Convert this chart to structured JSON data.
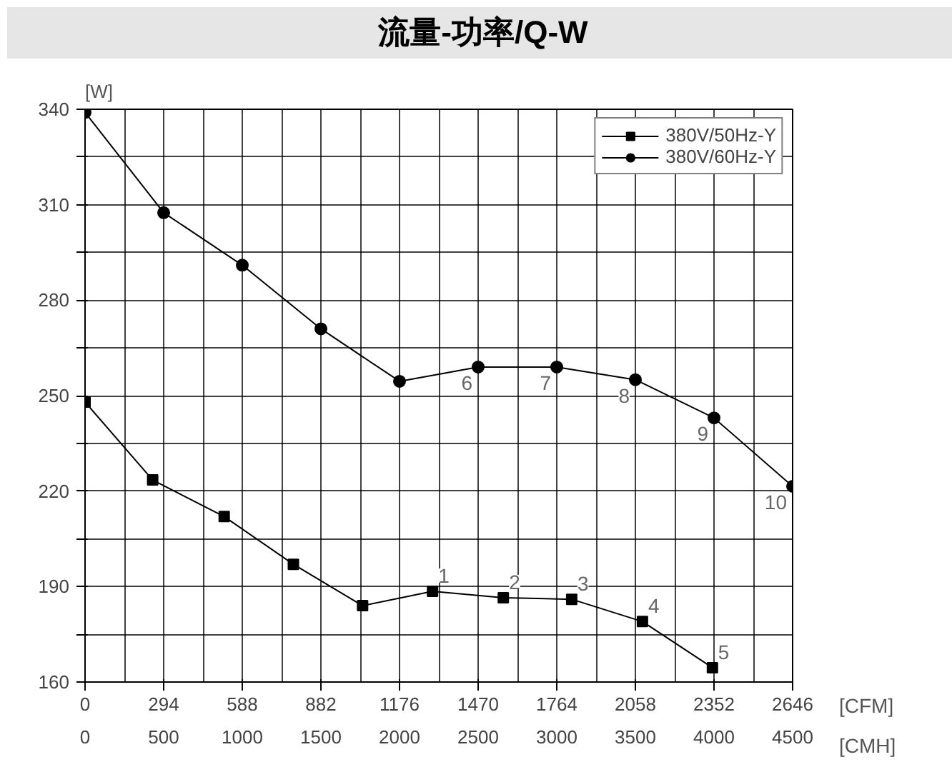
{
  "chart_data": {
    "type": "line",
    "title": "流量-功率/Q-W",
    "xlabel": "[CMH]",
    "x2label": "[CFM]",
    "ylabel": "[W]",
    "series": [
      {
        "name": "380V/50Hz-Y",
        "color": "#000000",
        "marker": "square",
        "x": [
          0,
          430,
          885,
          1325,
          1765,
          2210,
          2660,
          3095,
          3545,
          3990
        ],
        "values": [
          248,
          223.5,
          212,
          197,
          184,
          188.5,
          186.5,
          186,
          179,
          164.5
        ]
      },
      {
        "name": "380V/60Hz-Y",
        "color": "#000000",
        "marker": "circle",
        "x": [
          0,
          500,
          1000,
          1500,
          2000,
          2500,
          3000,
          3500,
          4000,
          4500
        ],
        "values": [
          339,
          307.5,
          291,
          271,
          254.5,
          259,
          259,
          255,
          243,
          221.5
        ]
      }
    ],
    "xlim": [
      0,
      4500
    ],
    "xticks": [
      0,
      {
        "value": 250,
        "label": null
      },
      500,
      {
        "value": 750,
        "label": null
      },
      1000,
      {
        "value": 1250,
        "label": null
      },
      1500,
      {
        "value": 1750,
        "label": null
      },
      2000,
      {
        "value": 2250,
        "label": null
      },
      2500,
      {
        "value": 2750,
        "label": null
      },
      3000,
      {
        "value": 3250,
        "label": null
      },
      3500,
      {
        "value": 3750,
        "label": null
      },
      4000,
      {
        "value": 4250,
        "label": null
      },
      4500
    ],
    "x2lim": [
      0,
      2646
    ],
    "x2ticks": [
      0,
      294,
      588,
      882,
      1176,
      1470,
      1764,
      2058,
      2352,
      2646
    ],
    "ylim": [
      160,
      340
    ],
    "yticks": [
      160,
      {
        "value": 175,
        "label": null
      },
      190,
      {
        "value": 205,
        "label": null
      },
      220,
      {
        "value": 235,
        "label": null
      },
      250,
      {
        "value": 265,
        "label": null
      },
      280,
      {
        "value": 295,
        "label": null
      },
      310,
      {
        "value": 325,
        "label": null
      },
      340
    ],
    "grid": true,
    "legend": "top right",
    "line_style": "solid",
    "annotations": [
      {
        "text": "1",
        "x": 2210,
        "y": 188.5
      },
      {
        "text": "2",
        "x": 2660,
        "y": 186.5
      },
      {
        "text": "3",
        "x": 3095,
        "y": 186
      },
      {
        "text": "4",
        "x": 3545,
        "y": 179
      },
      {
        "text": "5",
        "x": 3990,
        "y": 164.5
      },
      {
        "text": "6",
        "x": 2500,
        "y": 259
      },
      {
        "text": "7",
        "x": 3000,
        "y": 259
      },
      {
        "text": "8",
        "x": 3500,
        "y": 255
      },
      {
        "text": "9",
        "x": 4000,
        "y": 243
      },
      {
        "text": "10",
        "x": 4500,
        "y": 221.5
      }
    ]
  }
}
